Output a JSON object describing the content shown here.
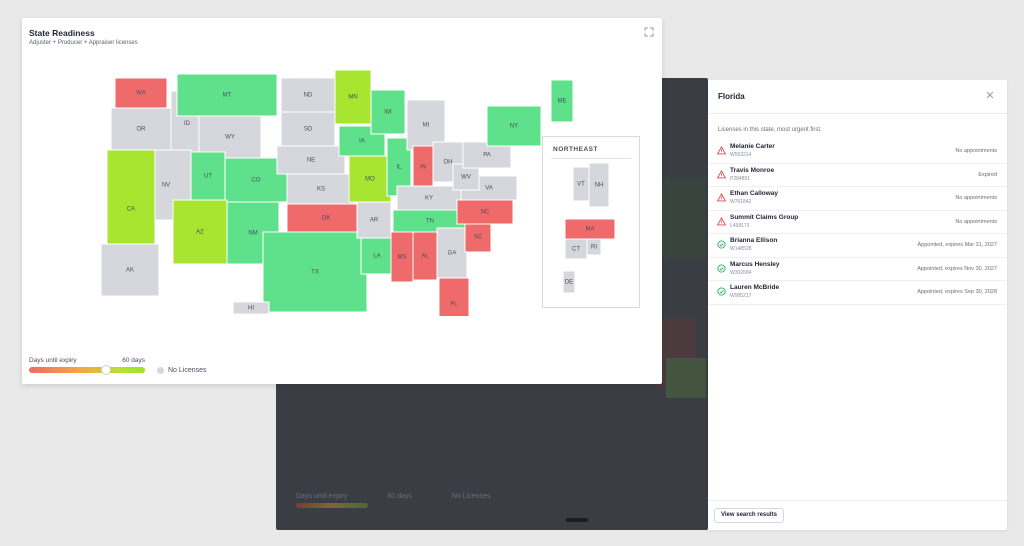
{
  "card": {
    "title": "State Readiness",
    "subtitle": "Adjuster + Producer + Appraiser licenses",
    "expand_icon": "expand-icon"
  },
  "colors": {
    "expired": "#ef6a6a",
    "warning": "#f4a742",
    "ok": "#5fe08a",
    "near": "#a7e530",
    "none": "#d5d7dc"
  },
  "states": {
    "WA": "WA",
    "OR": "OR",
    "ID": "ID",
    "MT": "MT",
    "WY": "WY",
    "NV": "NV",
    "CA": "CA",
    "UT": "UT",
    "CO": "CO",
    "AZ": "AZ",
    "NM": "NM",
    "ND": "ND",
    "SD": "SD",
    "NE": "NE",
    "KS": "KS",
    "OK": "OK",
    "TX": "TX",
    "MN": "MN",
    "IA": "IA",
    "MO": "MO",
    "AR": "AR",
    "LA": "LA",
    "WI": "WI",
    "IL": "IL",
    "MI": "MI",
    "IN": "IN",
    "OH": "OH",
    "KY": "KY",
    "TN": "TN",
    "MS": "MS",
    "AL": "AL",
    "GA": "GA",
    "FL": "FL",
    "SC": "SC",
    "NC": "NC",
    "VA": "VA",
    "WV": "WV",
    "PA": "PA",
    "NY": "NY",
    "ME": "ME",
    "AK": "AK",
    "HI": "HI"
  },
  "northeast": {
    "title": "NORTHEAST",
    "VT": "VT",
    "NH": "NH",
    "MA": "MA",
    "CT": "CT",
    "RI": "RI",
    "DE": "DE"
  },
  "legend": {
    "label": "Days until expiry",
    "max": "60 days",
    "no_license": "No Licenses"
  },
  "back": {
    "legend_label": "Days until expiry",
    "legend_max": "60 days",
    "no_license": "No Licenses"
  },
  "panel": {
    "title": "Florida",
    "subtitle": "Licenses in this state, most urgent first.",
    "button": "View search results",
    "items": [
      {
        "name": "Melanie Carter",
        "id": "W553214",
        "status": "No appointments",
        "icon": "warning-triangle-icon"
      },
      {
        "name": "Travis Monroe",
        "id": "P284851",
        "status": "Expired",
        "icon": "warning-triangle-icon"
      },
      {
        "name": "Ethan Calloway",
        "id": "W761842",
        "status": "No appointments",
        "icon": "warning-triangle-icon"
      },
      {
        "name": "Summit Claims Group",
        "id": "L458173",
        "status": "No appointments",
        "icon": "warning-triangle-icon"
      },
      {
        "name": "Brianna Ellison",
        "id": "W148528",
        "status": "Appointed, expires Mar 31, 2027",
        "icon": "check-circle-icon"
      },
      {
        "name": "Marcus Hensley",
        "id": "W302684",
        "status": "Appointed, expires Nov 30, 2027",
        "icon": "check-circle-icon"
      },
      {
        "name": "Lauren McBride",
        "id": "W995217",
        "status": "Appointed, expires Sep 30, 2028",
        "icon": "check-circle-icon"
      }
    ]
  }
}
